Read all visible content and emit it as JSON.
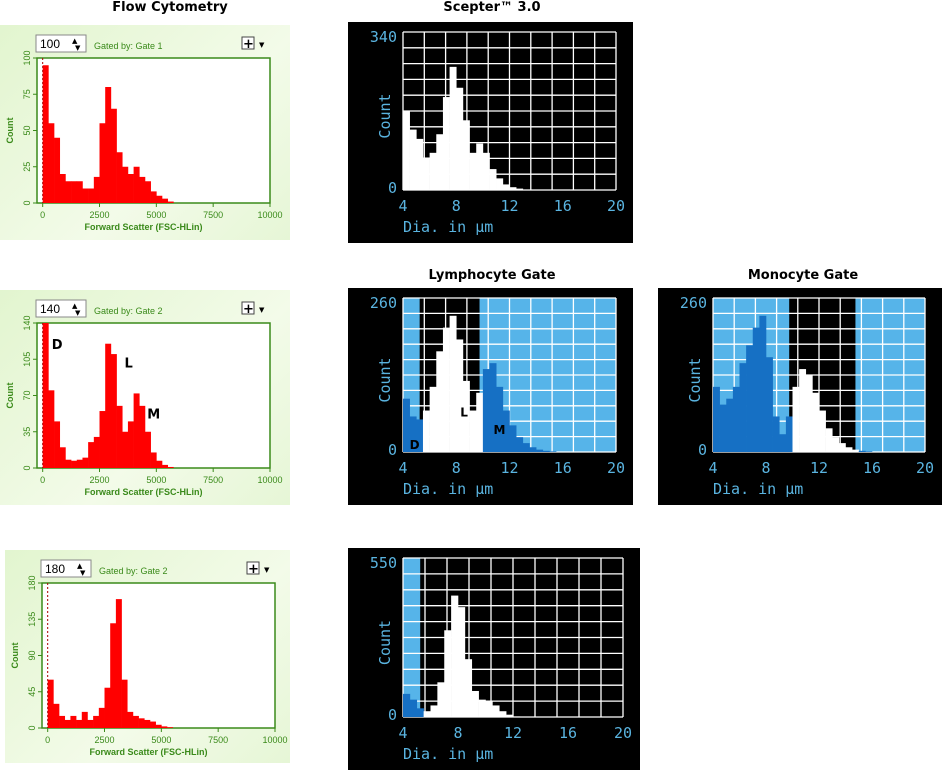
{
  "titles": {
    "flow": "Flow Cytometry",
    "scepter": "Scepter™ 3.0",
    "lymph": "Lymphocyte Gate",
    "mono": "Monocyte Gate"
  },
  "colors": {
    "fc_bar": "#ff0000",
    "fc_axis": "#3a8a1a",
    "sc_bg": "#000000",
    "sc_text": "#5ab4e0",
    "sc_gated": "#ffffff",
    "sc_excluded_bar": "#1670c4",
    "sc_excluded_region": "#56b4e9"
  },
  "chart_data": [
    {
      "id": "fc1",
      "type": "bar",
      "spinner": "100",
      "gate_label": "Gated by: Gate 1",
      "xlabel": "Forward Scatter (FSC-HLin)",
      "ylabel": "Count",
      "xlim": [
        -250,
        10000
      ],
      "ylim": [
        0,
        100
      ],
      "xticks": [
        "0",
        "2500",
        "5000",
        "7500",
        "10000"
      ],
      "yticks": [
        "0",
        "25",
        "50",
        "75",
        "100"
      ],
      "bin_width": 250,
      "values": [
        95,
        55,
        45,
        20,
        15,
        15,
        15,
        10,
        10,
        18,
        55,
        80,
        65,
        35,
        25,
        20,
        25,
        18,
        15,
        8,
        5,
        3,
        1,
        0,
        0,
        0,
        0,
        0,
        0,
        0,
        0,
        0,
        0,
        0,
        0,
        0,
        0,
        0,
        0,
        0
      ],
      "annotations": []
    },
    {
      "id": "sc1",
      "type": "bar",
      "xlabel": "Dia. in µm",
      "ylabel": "Count",
      "xlim": [
        4,
        20
      ],
      "ylim": [
        0,
        340
      ],
      "xticks": [
        "4",
        "8",
        "12",
        "16",
        "20"
      ],
      "yticks": [
        "0",
        "340"
      ],
      "bin_width": 0.5,
      "gate": null,
      "values": [
        170,
        130,
        110,
        70,
        80,
        120,
        200,
        265,
        220,
        150,
        80,
        100,
        80,
        45,
        25,
        12,
        6,
        3,
        1,
        0,
        0,
        0,
        0,
        0,
        0,
        0,
        0,
        0,
        0,
        0,
        0,
        0
      ],
      "annotations": []
    },
    {
      "id": "fc2",
      "type": "bar",
      "spinner": "140",
      "gate_label": "Gated by: Gate 2",
      "xlabel": "Forward Scatter (FSC-HLin)",
      "ylabel": "Count",
      "xlim": [
        -250,
        10000
      ],
      "ylim": [
        0,
        140
      ],
      "xticks": [
        "0",
        "2500",
        "5000",
        "7500",
        "10000"
      ],
      "yticks": [
        "0",
        "35",
        "70",
        "105",
        "140"
      ],
      "bin_width": 250,
      "values": [
        140,
        75,
        45,
        20,
        8,
        7,
        8,
        10,
        25,
        30,
        55,
        120,
        110,
        60,
        35,
        45,
        72,
        60,
        35,
        15,
        7,
        3,
        1,
        0,
        0,
        0,
        0,
        0,
        0,
        0,
        0,
        0,
        0,
        0,
        0,
        0,
        0,
        0,
        0,
        0
      ],
      "annotations": [
        {
          "text": "D",
          "x": 400,
          "y": 115
        },
        {
          "text": "L",
          "x": 3600,
          "y": 97
        },
        {
          "text": "M",
          "x": 4600,
          "y": 48
        }
      ]
    },
    {
      "id": "sc2",
      "type": "bar",
      "xlabel": "Dia. in µm",
      "ylabel": "Count",
      "xlim": [
        4,
        20
      ],
      "ylim": [
        0,
        260
      ],
      "xticks": [
        "4",
        "8",
        "12",
        "16",
        "20"
      ],
      "yticks": [
        "0",
        "260"
      ],
      "bin_width": 0.5,
      "gate": [
        5.25,
        9.75
      ],
      "values": [
        90,
        60,
        55,
        70,
        110,
        170,
        210,
        230,
        190,
        120,
        70,
        100,
        140,
        150,
        110,
        70,
        45,
        25,
        15,
        8,
        4,
        2,
        1,
        0,
        0,
        0,
        0,
        0,
        0,
        0,
        0,
        0
      ],
      "annotations": [
        {
          "text": "D",
          "x": 4.5,
          "y": 5
        },
        {
          "text": "L",
          "x": 8.3,
          "y": 60
        },
        {
          "text": "M",
          "x": 10.8,
          "y": 30
        }
      ]
    },
    {
      "id": "sc3",
      "type": "bar",
      "xlabel": "Dia. in µm",
      "ylabel": "Count",
      "xlim": [
        4,
        20
      ],
      "ylim": [
        0,
        260
      ],
      "xticks": [
        "4",
        "8",
        "12",
        "16",
        "20"
      ],
      "yticks": [
        "0",
        "260"
      ],
      "bin_width": 0.5,
      "gate": [
        9.75,
        14.75
      ],
      "values": [
        110,
        80,
        90,
        110,
        150,
        180,
        210,
        230,
        160,
        60,
        30,
        60,
        110,
        140,
        130,
        100,
        70,
        40,
        25,
        15,
        8,
        4,
        2,
        1,
        0,
        0,
        0,
        0,
        0,
        0,
        0,
        0
      ],
      "annotations": []
    },
    {
      "id": "fc3",
      "type": "bar",
      "spinner": "180",
      "gate_label": "Gated by: Gate 2",
      "xlabel": "Forward Scatter (FSC-HLin)",
      "ylabel": "Count",
      "xlim": [
        -250,
        10000
      ],
      "ylim": [
        0,
        180
      ],
      "xticks": [
        "0",
        "2500",
        "5000",
        "7500",
        "10000"
      ],
      "yticks": [
        "0",
        "45",
        "90",
        "135",
        "180"
      ],
      "bin_width": 250,
      "values": [
        60,
        30,
        15,
        10,
        15,
        10,
        20,
        10,
        15,
        25,
        50,
        130,
        160,
        60,
        20,
        15,
        12,
        10,
        8,
        4,
        2,
        1,
        0,
        0,
        0,
        0,
        0,
        0,
        0,
        0,
        0,
        0,
        0,
        0,
        0,
        0,
        0,
        0,
        0,
        0
      ],
      "annotations": []
    },
    {
      "id": "sc4",
      "type": "bar",
      "xlabel": "Dia. in µm",
      "ylabel": "Count",
      "xlim": [
        4,
        20
      ],
      "ylim": [
        0,
        550
      ],
      "xticks": [
        "4",
        "8",
        "12",
        "16",
        "20"
      ],
      "yticks": [
        "0",
        "550"
      ],
      "bin_width": 0.5,
      "gate": [
        5.25,
        20
      ],
      "values": [
        80,
        60,
        30,
        20,
        40,
        120,
        300,
        420,
        380,
        200,
        90,
        60,
        55,
        40,
        20,
        8,
        2,
        0,
        0,
        0,
        0,
        0,
        0,
        0,
        0,
        0,
        0,
        0,
        0,
        0,
        0,
        0
      ],
      "annotations": []
    }
  ]
}
